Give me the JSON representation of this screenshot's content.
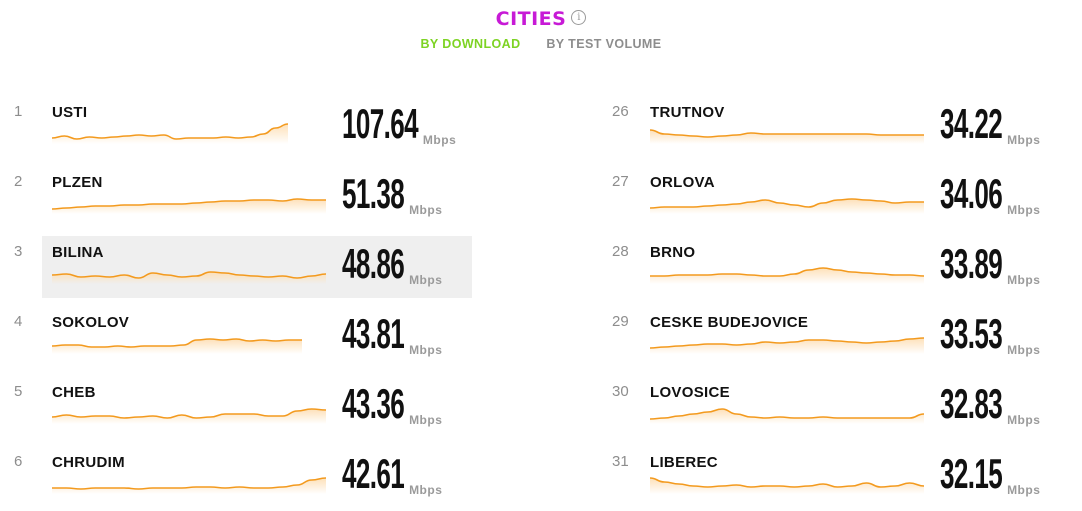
{
  "header": {
    "title": "CITIES",
    "info_icon": "info-icon"
  },
  "tabs": [
    {
      "label": "BY DOWNLOAD",
      "active": true
    },
    {
      "label": "BY TEST VOLUME",
      "active": false
    }
  ],
  "unit": "Mbps",
  "colors": {
    "title": "#c71ad6",
    "active_tab": "#7dd323",
    "spark_line": "#f39a1e",
    "spark_fill": "#fde0b8",
    "highlight": "#efefef"
  },
  "left": [
    {
      "rank": "1",
      "city": "USTI",
      "value": "107.64",
      "trend": [
        4,
        6,
        3,
        5,
        4,
        5,
        6,
        7,
        6,
        7,
        3,
        4,
        4,
        4,
        5,
        4,
        5,
        8,
        14,
        18
      ],
      "highlighted": false
    },
    {
      "rank": "2",
      "city": "PLZEN",
      "value": "51.38",
      "trend": [
        3,
        4,
        5,
        6,
        6,
        7,
        7,
        8,
        8,
        8,
        9,
        10,
        11,
        11,
        12,
        12,
        11,
        13,
        12,
        12
      ],
      "highlighted": false
    },
    {
      "rank": "3",
      "city": "BILINA",
      "value": "48.86",
      "trend": [
        7,
        8,
        5,
        6,
        5,
        7,
        4,
        9,
        7,
        5,
        6,
        10,
        9,
        7,
        6,
        5,
        6,
        4,
        6,
        8
      ],
      "highlighted": true
    },
    {
      "rank": "4",
      "city": "SOKOLOV",
      "value": "43.81",
      "trend": [
        6,
        7,
        7,
        5,
        5,
        6,
        5,
        6,
        6,
        6,
        7,
        12,
        13,
        12,
        13,
        11,
        12,
        11,
        12,
        12
      ],
      "highlighted": false
    },
    {
      "rank": "5",
      "city": "CHEB",
      "value": "43.36",
      "trend": [
        5,
        7,
        5,
        6,
        6,
        4,
        5,
        6,
        4,
        7,
        4,
        5,
        8,
        8,
        8,
        6,
        6,
        11,
        13,
        12
      ],
      "highlighted": false
    },
    {
      "rank": "6",
      "city": "CHRUDIM",
      "value": "42.61",
      "trend": [
        4,
        4,
        3,
        4,
        4,
        4,
        3,
        4,
        4,
        4,
        5,
        5,
        4,
        5,
        4,
        4,
        5,
        7,
        12,
        14
      ],
      "highlighted": false
    }
  ],
  "right": [
    {
      "rank": "26",
      "city": "TRUTNOV",
      "value": "34.22",
      "trend": [
        12,
        8,
        7,
        6,
        5,
        6,
        7,
        9,
        8,
        8,
        8,
        8,
        8,
        8,
        8,
        8,
        7,
        7,
        7,
        7
      ],
      "highlighted": false
    },
    {
      "rank": "27",
      "city": "ORLOVA",
      "value": "34.06",
      "trend": [
        4,
        5,
        5,
        5,
        6,
        7,
        8,
        10,
        12,
        9,
        7,
        5,
        9,
        12,
        13,
        12,
        11,
        9,
        10,
        10
      ],
      "highlighted": false
    },
    {
      "rank": "28",
      "city": "BRNO",
      "value": "33.89",
      "trend": [
        6,
        6,
        7,
        7,
        7,
        8,
        8,
        7,
        6,
        6,
        8,
        12,
        14,
        12,
        10,
        9,
        8,
        7,
        7,
        6
      ],
      "highlighted": false
    },
    {
      "rank": "29",
      "city": "CESKE BUDEJOVICE",
      "value": "33.53",
      "trend": [
        4,
        5,
        6,
        7,
        8,
        8,
        7,
        8,
        10,
        9,
        10,
        12,
        12,
        11,
        10,
        9,
        10,
        11,
        13,
        14
      ],
      "highlighted": false
    },
    {
      "rank": "30",
      "city": "LOVOSICE",
      "value": "32.83",
      "trend": [
        3,
        4,
        6,
        8,
        10,
        13,
        8,
        5,
        4,
        5,
        4,
        4,
        5,
        4,
        4,
        4,
        4,
        4,
        4,
        8
      ],
      "highlighted": false
    },
    {
      "rank": "31",
      "city": "LIBEREC",
      "value": "32.15",
      "trend": [
        14,
        10,
        8,
        6,
        5,
        6,
        7,
        5,
        6,
        6,
        5,
        6,
        8,
        5,
        6,
        9,
        5,
        6,
        9,
        6
      ],
      "highlighted": false
    }
  ]
}
